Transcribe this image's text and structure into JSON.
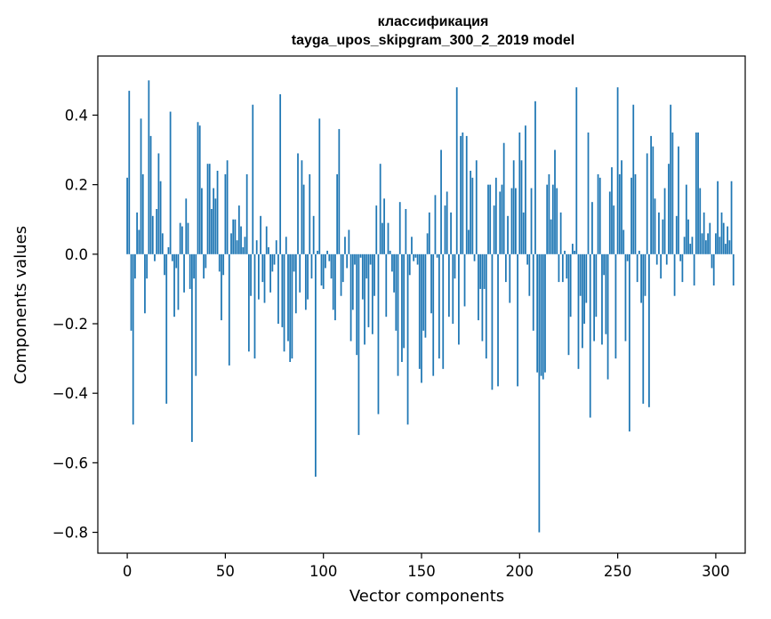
{
  "chart_data": {
    "type": "bar",
    "title": "классификация",
    "subtitle": "tayga_upos_skipgram_300_2_2019 model",
    "xlabel": "Vector components",
    "ylabel": "Components values",
    "xlim": [
      -15,
      315
    ],
    "ylim": [
      -0.86,
      0.57
    ],
    "xticks": [
      0,
      50,
      100,
      150,
      200,
      250,
      300
    ],
    "yticks": [
      -0.8,
      -0.6,
      -0.4,
      -0.2,
      0.0,
      0.2,
      0.4
    ],
    "ytick_labels": [
      "−0.8",
      "−0.6",
      "−0.4",
      "−0.2",
      "0.0",
      "0.2",
      "0.4"
    ],
    "grid": false,
    "bar_color": "#1f77b4",
    "values": [
      0.22,
      0.47,
      -0.22,
      -0.49,
      -0.07,
      0.12,
      0.07,
      0.39,
      0.23,
      -0.17,
      -0.07,
      0.5,
      0.34,
      0.11,
      -0.02,
      0.13,
      0.29,
      0.21,
      0.06,
      -0.06,
      -0.43,
      0.02,
      0.41,
      -0.02,
      -0.18,
      -0.04,
      -0.16,
      0.09,
      0.08,
      -0.11,
      0.16,
      0.09,
      -0.1,
      -0.54,
      -0.07,
      -0.35,
      0.38,
      0.37,
      0.19,
      -0.07,
      -0.04,
      0.26,
      0.26,
      0.13,
      0.19,
      0.16,
      0.24,
      -0.05,
      -0.19,
      -0.06,
      0.23,
      0.27,
      -0.32,
      0.06,
      0.1,
      0.1,
      0.04,
      0.14,
      0.08,
      0.02,
      0.05,
      0.23,
      -0.28,
      -0.12,
      0.43,
      -0.3,
      0.04,
      -0.13,
      0.11,
      -0.08,
      -0.14,
      0.08,
      0.02,
      -0.11,
      -0.05,
      -0.03,
      0.04,
      -0.2,
      0.46,
      -0.21,
      -0.28,
      0.05,
      -0.25,
      -0.31,
      -0.3,
      -0.05,
      -0.17,
      0.29,
      -0.11,
      0.27,
      0.2,
      -0.16,
      -0.13,
      0.23,
      -0.07,
      0.11,
      -0.64,
      0.01,
      0.39,
      -0.09,
      -0.1,
      -0.04,
      0.01,
      -0.02,
      -0.07,
      -0.16,
      -0.19,
      0.23,
      0.36,
      -0.12,
      -0.08,
      0.05,
      -0.04,
      0.07,
      -0.25,
      -0.16,
      -0.03,
      -0.29,
      -0.52,
      -0.01,
      -0.13,
      -0.26,
      -0.07,
      -0.21,
      -0.03,
      -0.23,
      -0.12,
      0.14,
      -0.46,
      0.26,
      0.09,
      0.16,
      -0.18,
      0.09,
      0.01,
      -0.05,
      -0.11,
      -0.22,
      -0.35,
      0.15,
      -0.31,
      -0.27,
      0.13,
      -0.49,
      -0.06,
      0.05,
      -0.02,
      -0.01,
      -0.03,
      -0.33,
      -0.37,
      -0.22,
      -0.24,
      0.06,
      0.12,
      -0.17,
      -0.35,
      0.17,
      -0.01,
      -0.3,
      0.3,
      -0.33,
      0.14,
      0.18,
      -0.18,
      0.12,
      -0.2,
      -0.07,
      0.48,
      -0.26,
      0.34,
      0.35,
      -0.15,
      0.34,
      0.07,
      0.24,
      0.22,
      -0.02,
      0.27,
      -0.19,
      -0.1,
      -0.25,
      -0.1,
      -0.3,
      0.2,
      0.2,
      -0.39,
      0.14,
      0.22,
      -0.38,
      0.18,
      0.2,
      0.32,
      -0.08,
      0.11,
      -0.14,
      0.19,
      0.27,
      0.19,
      -0.38,
      0.35,
      0.27,
      0.12,
      0.37,
      -0.03,
      -0.12,
      0.19,
      -0.22,
      0.44,
      -0.34,
      -0.8,
      -0.35,
      -0.36,
      -0.34,
      0.2,
      0.23,
      0.1,
      0.2,
      0.3,
      0.19,
      -0.08,
      0.12,
      -0.08,
      0.01,
      -0.07,
      -0.29,
      -0.18,
      0.03,
      0.01,
      0.48,
      -0.33,
      -0.12,
      -0.27,
      -0.2,
      -0.14,
      0.35,
      -0.47,
      0.15,
      -0.25,
      -0.18,
      0.23,
      0.22,
      -0.26,
      -0.06,
      -0.23,
      -0.36,
      0.18,
      0.25,
      0.14,
      -0.3,
      0.48,
      0.23,
      0.27,
      0.07,
      -0.25,
      -0.02,
      -0.51,
      0.22,
      0.43,
      0.23,
      -0.08,
      0.01,
      -0.14,
      -0.43,
      -0.12,
      0.29,
      -0.44,
      0.34,
      0.31,
      0.16,
      -0.03,
      0.12,
      -0.07,
      0.1,
      0.19,
      -0.03,
      0.26,
      0.43,
      0.35,
      -0.12,
      0.11,
      0.31,
      -0.02,
      -0.08,
      0.05,
      0.2,
      0.1,
      0.03,
      0.05,
      -0.09,
      0.35,
      0.35,
      0.19,
      0.06,
      0.12,
      0.04,
      0.06,
      0.09,
      -0.04,
      -0.09,
      0.06,
      0.21,
      0.05,
      0.12,
      0.09,
      0.03,
      0.08,
      0.04,
      0.21,
      -0.09
    ]
  }
}
